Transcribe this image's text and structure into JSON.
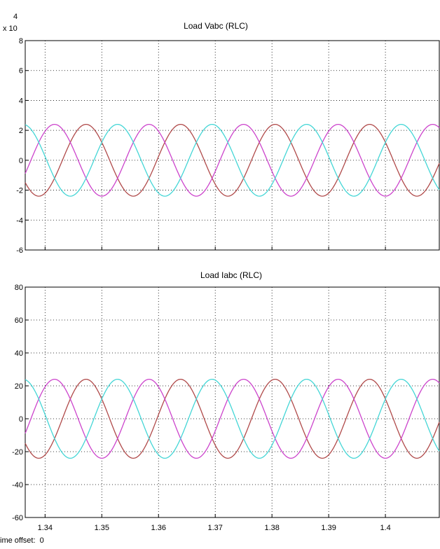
{
  "chart_data": [
    {
      "type": "line",
      "title": "Load Vabc (RLC)",
      "exponent_label": "x 10",
      "exponent_power": "4",
      "ylim": [
        -6,
        8
      ],
      "yticks": [
        -6,
        -4,
        -2,
        0,
        2,
        4,
        6,
        8
      ],
      "xlim": [
        1.3365,
        1.4095
      ],
      "xticks": [
        1.34,
        1.35,
        1.36,
        1.37,
        1.38,
        1.39,
        1.4
      ],
      "xticklabels": [
        "1.34",
        "1.35",
        "1.36",
        "1.37",
        "1.38",
        "1.39",
        "1.4"
      ],
      "grid": true,
      "waveform": {
        "frequency_hz": 60,
        "amplitude": 2.4
      },
      "series": [
        {
          "phase_deg": 150,
          "color": "#b04a4a"
        },
        {
          "phase_deg": -90,
          "color": "#cc44cc"
        },
        {
          "phase_deg": 30,
          "color": "#44d6d6"
        }
      ]
    },
    {
      "type": "line",
      "title": "Load Iabc (RLC)",
      "ylim": [
        -60,
        80
      ],
      "yticks": [
        -60,
        -40,
        -20,
        0,
        20,
        40,
        60,
        80
      ],
      "xlim": [
        1.3365,
        1.4095
      ],
      "xticks": [
        1.34,
        1.35,
        1.36,
        1.37,
        1.38,
        1.39,
        1.4
      ],
      "xticklabels": [
        "1.34",
        "1.35",
        "1.36",
        "1.37",
        "1.38",
        "1.39",
        "1.4"
      ],
      "grid": true,
      "waveform": {
        "frequency_hz": 60,
        "amplitude": 24
      },
      "series": [
        {
          "phase_deg": 150,
          "color": "#b04a4a"
        },
        {
          "phase_deg": -90,
          "color": "#cc44cc"
        },
        {
          "phase_deg": 30,
          "color": "#44d6d6"
        }
      ]
    }
  ],
  "status": {
    "text": "ime offset:  0"
  }
}
